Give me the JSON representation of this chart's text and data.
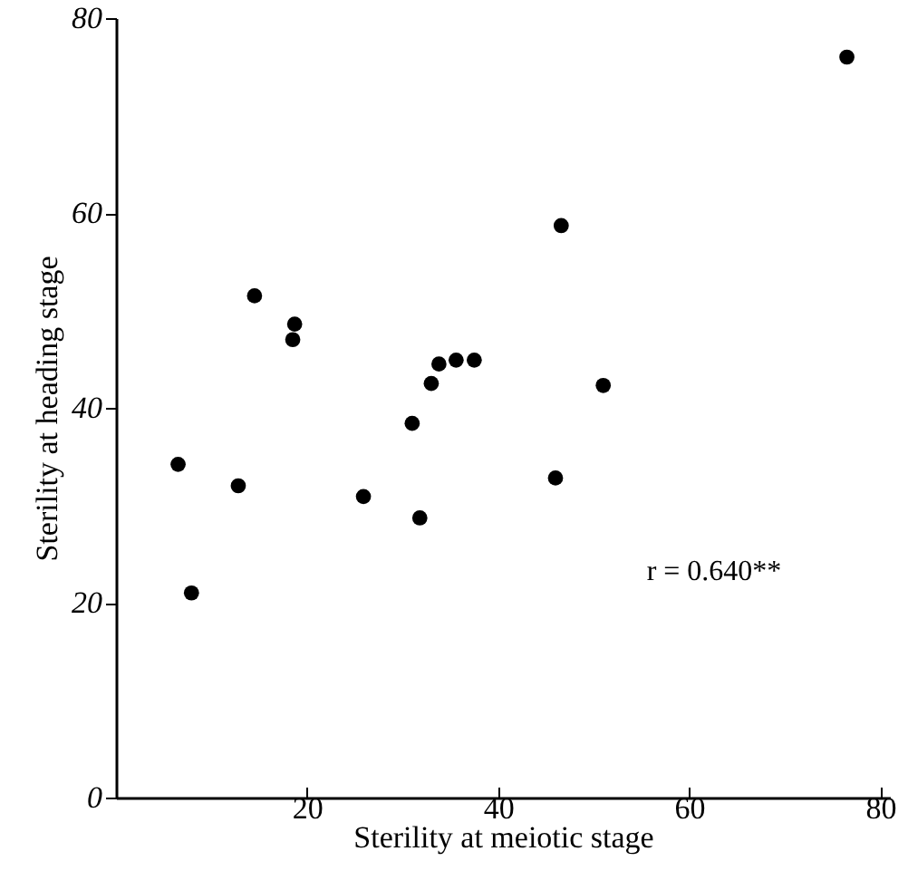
{
  "chart_data": {
    "type": "scatter",
    "xlabel": "Sterility at meiotic stage",
    "ylabel": "Sterility at heading stage",
    "x": [
      6.5,
      7.9,
      12.8,
      14.5,
      18.7,
      18.5,
      25.9,
      31.0,
      31.8,
      33.0,
      33.8,
      35.6,
      37.5,
      46.0,
      46.6,
      51.0,
      76.5
    ],
    "series": [
      {
        "color": "#000000",
        "values": [
          34.2,
          21.0,
          32.0,
          51.5,
          48.6,
          47.0,
          30.9,
          38.4,
          28.7,
          42.5,
          44.5,
          44.9,
          44.9,
          32.8,
          58.7,
          42.3,
          76.0
        ]
      }
    ],
    "xlim": [
      0,
      81
    ],
    "xticks": [
      20,
      40,
      60,
      80
    ],
    "ylim": [
      0,
      80
    ],
    "yticks": [
      0,
      20,
      40,
      60,
      80
    ],
    "grid": false,
    "legend": false,
    "marker": "circle",
    "annotations": [
      "r = 0.640**"
    ]
  }
}
